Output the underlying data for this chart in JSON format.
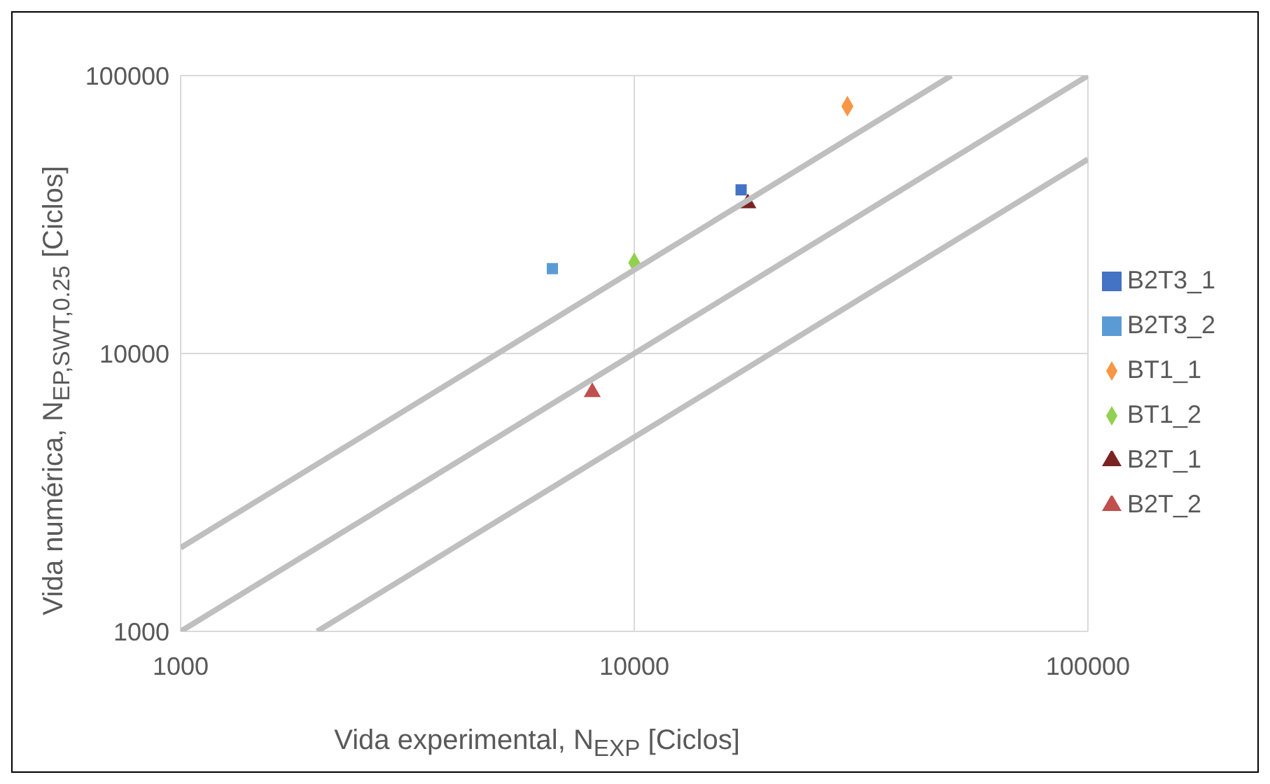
{
  "chart_data": {
    "type": "scatter",
    "xlabel": "Vida experimental, N$_{EXP}$ [Ciclos]",
    "ylabel": "Vida numérica, N$_{EP,SWT,0.25}$ [Ciclos]",
    "log": "xy",
    "xlim": [
      1000,
      100000
    ],
    "ylim": [
      1000,
      100000
    ],
    "xticks": [
      1000,
      10000,
      100000
    ],
    "yticks": [
      1000,
      10000,
      100000
    ],
    "grid": true,
    "legend": "right",
    "series": [
      {
        "name": "B2T3_1",
        "color": "#4472c4",
        "marker": "square",
        "x": [
          17200
        ],
        "values": [
          38800
        ]
      },
      {
        "name": "B2T3_2",
        "color": "#5b9bd5",
        "marker": "square",
        "x": [
          6600
        ],
        "values": [
          20200
        ]
      },
      {
        "name": "BT1_1",
        "color": "#f79646",
        "marker": "diamond",
        "x": [
          29500
        ],
        "values": [
          77600
        ]
      },
      {
        "name": "BT1_2",
        "color": "#92d050",
        "marker": "diamond",
        "x": [
          10000
        ],
        "values": [
          21200
        ]
      },
      {
        "name": "B2T_1",
        "color": "#7b2323",
        "marker": "triangle",
        "x": [
          17800
        ],
        "values": [
          34700
        ]
      },
      {
        "name": "B2T_2",
        "color": "#c0504d",
        "marker": "triangle",
        "x": [
          8080
        ],
        "values": [
          7260
        ]
      },
      {
        "type": "line",
        "color": "#bfbfbf",
        "x": [
          1000,
          50000
        ],
        "values": [
          2000,
          100000
        ]
      },
      {
        "type": "line",
        "color": "#bfbfbf",
        "x": [
          1000,
          100000
        ],
        "values": [
          1000,
          100000
        ]
      },
      {
        "type": "line",
        "color": "#bfbfbf",
        "x": [
          2000,
          100000
        ],
        "values": [
          1000,
          50000
        ]
      }
    ]
  }
}
